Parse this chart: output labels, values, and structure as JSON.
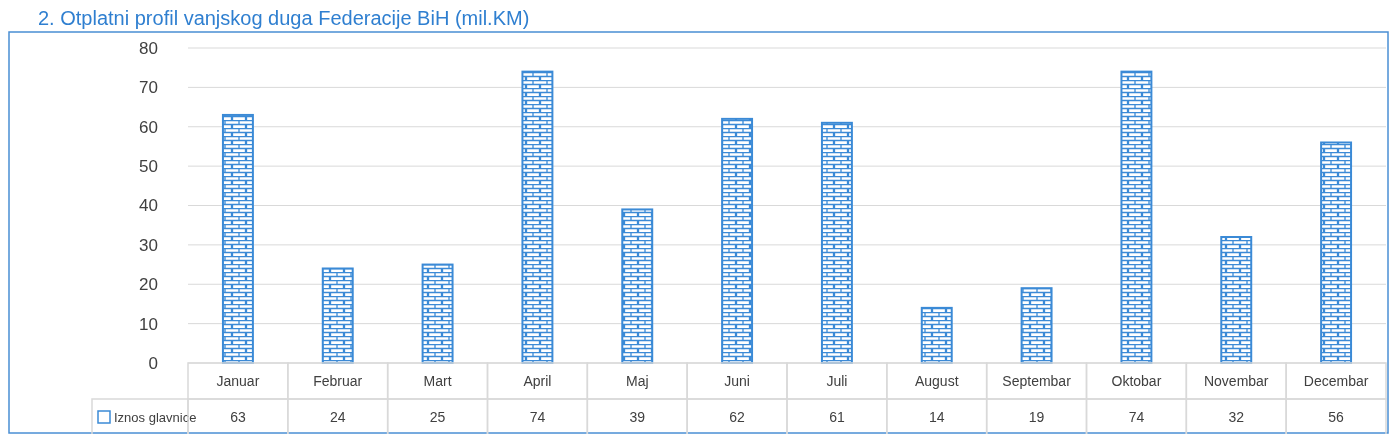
{
  "chart_data": {
    "type": "bar",
    "title": "2. Otplatni profil vanjskog duga Federacije BiH (mil.KM)",
    "categories": [
      "Januar",
      "Februar",
      "Mart",
      "April",
      "Maj",
      "Juni",
      "Juli",
      "August",
      "Septembar",
      "Oktobar",
      "Novembar",
      "Decembar"
    ],
    "series": [
      {
        "name": "Iznos glavnice",
        "color": "#3b8ad6",
        "values": [
          63,
          24,
          25,
          74,
          39,
          62,
          61,
          14,
          19,
          74,
          32,
          56
        ]
      }
    ],
    "ylim": [
      0,
      80
    ],
    "yticks": [
      0,
      10,
      20,
      30,
      40,
      50,
      60,
      70,
      80
    ],
    "grid": "y",
    "legend": "bottom",
    "data_labels": true
  }
}
